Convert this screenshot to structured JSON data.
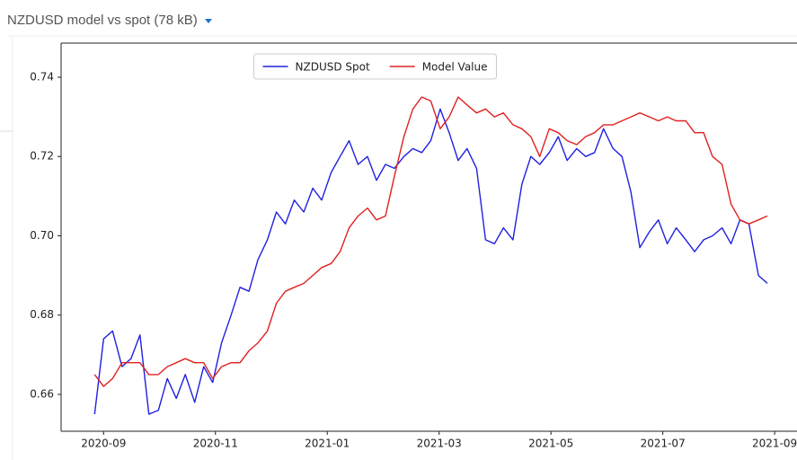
{
  "header": {
    "title": "NZDUSD model vs spot (78 kB)"
  },
  "chart_data": {
    "type": "line",
    "legend": "upper center",
    "grid": false,
    "xlim": [
      8.24,
      21.4
    ],
    "xticks": [
      {
        "value": 9,
        "label": "2020-09"
      },
      {
        "value": 11,
        "label": "2020-11"
      },
      {
        "value": 13,
        "label": "2021-01"
      },
      {
        "value": 15,
        "label": "2021-03"
      },
      {
        "value": 17,
        "label": "2021-05"
      },
      {
        "value": 19,
        "label": "2021-07"
      },
      {
        "value": 21,
        "label": "2021-09"
      }
    ],
    "ylim": [
      0.6507,
      0.7486
    ],
    "yticks": [
      {
        "value": 0.66,
        "label": "0.66"
      },
      {
        "value": 0.68,
        "label": "0.68"
      },
      {
        "value": 0.7,
        "label": "0.70"
      },
      {
        "value": 0.72,
        "label": "0.72"
      },
      {
        "value": 0.74,
        "label": "0.74"
      }
    ],
    "x": [
      8.84,
      9.0,
      9.16,
      9.33,
      9.49,
      9.65,
      9.81,
      9.98,
      10.14,
      10.3,
      10.46,
      10.63,
      10.79,
      10.95,
      11.11,
      11.28,
      11.44,
      11.6,
      11.76,
      11.93,
      12.09,
      12.25,
      12.41,
      12.58,
      12.74,
      12.9,
      13.07,
      13.23,
      13.39,
      13.55,
      13.72,
      13.88,
      14.04,
      14.2,
      14.37,
      14.53,
      14.69,
      14.85,
      15.02,
      15.18,
      15.34,
      15.5,
      15.67,
      15.83,
      15.99,
      16.15,
      16.32,
      16.48,
      16.64,
      16.8,
      16.97,
      17.13,
      17.29,
      17.46,
      17.62,
      17.78,
      17.94,
      18.11,
      18.27,
      18.43,
      18.59,
      18.76,
      18.92,
      19.08,
      19.24,
      19.41,
      19.57,
      19.73,
      19.89,
      20.06,
      20.22,
      20.38,
      20.54,
      20.71,
      20.87
    ],
    "series": [
      {
        "name": "NZDUSD Spot",
        "color": "#2020e0",
        "values": [
          0.655,
          0.674,
          0.676,
          0.667,
          0.669,
          0.675,
          0.655,
          0.656,
          0.664,
          0.659,
          0.665,
          0.658,
          0.667,
          0.663,
          0.673,
          0.68,
          0.687,
          0.686,
          0.694,
          0.699,
          0.706,
          0.703,
          0.709,
          0.706,
          0.712,
          0.709,
          0.716,
          0.72,
          0.724,
          0.718,
          0.72,
          0.714,
          0.718,
          0.717,
          0.72,
          0.722,
          0.721,
          0.724,
          0.732,
          0.726,
          0.719,
          0.722,
          0.717,
          0.699,
          0.698,
          0.702,
          0.699,
          0.713,
          0.72,
          0.718,
          0.721,
          0.725,
          0.719,
          0.722,
          0.72,
          0.721,
          0.727,
          0.722,
          0.72,
          0.711,
          0.697,
          0.701,
          0.704,
          0.698,
          0.702,
          0.699,
          0.696,
          0.699,
          0.7,
          0.702,
          0.698,
          0.704,
          0.703,
          0.69,
          0.688
        ]
      },
      {
        "name": "Model Value",
        "color": "#e02020",
        "values": [
          0.665,
          0.662,
          0.664,
          0.668,
          0.668,
          0.668,
          0.665,
          0.665,
          0.667,
          0.668,
          0.669,
          0.668,
          0.668,
          0.664,
          0.667,
          0.668,
          0.668,
          0.671,
          0.673,
          0.676,
          0.683,
          0.686,
          0.687,
          0.688,
          0.69,
          0.692,
          0.693,
          0.696,
          0.702,
          0.705,
          0.707,
          0.704,
          0.705,
          0.715,
          0.725,
          0.732,
          0.735,
          0.734,
          0.727,
          0.73,
          0.735,
          0.733,
          0.731,
          0.732,
          0.73,
          0.731,
          0.728,
          0.727,
          0.725,
          0.72,
          0.727,
          0.726,
          0.724,
          0.723,
          0.725,
          0.726,
          0.728,
          0.728,
          0.729,
          0.73,
          0.731,
          0.73,
          0.729,
          0.73,
          0.729,
          0.729,
          0.726,
          0.726,
          0.72,
          0.718,
          0.708,
          0.704,
          0.703,
          0.704,
          0.705
        ]
      }
    ]
  }
}
